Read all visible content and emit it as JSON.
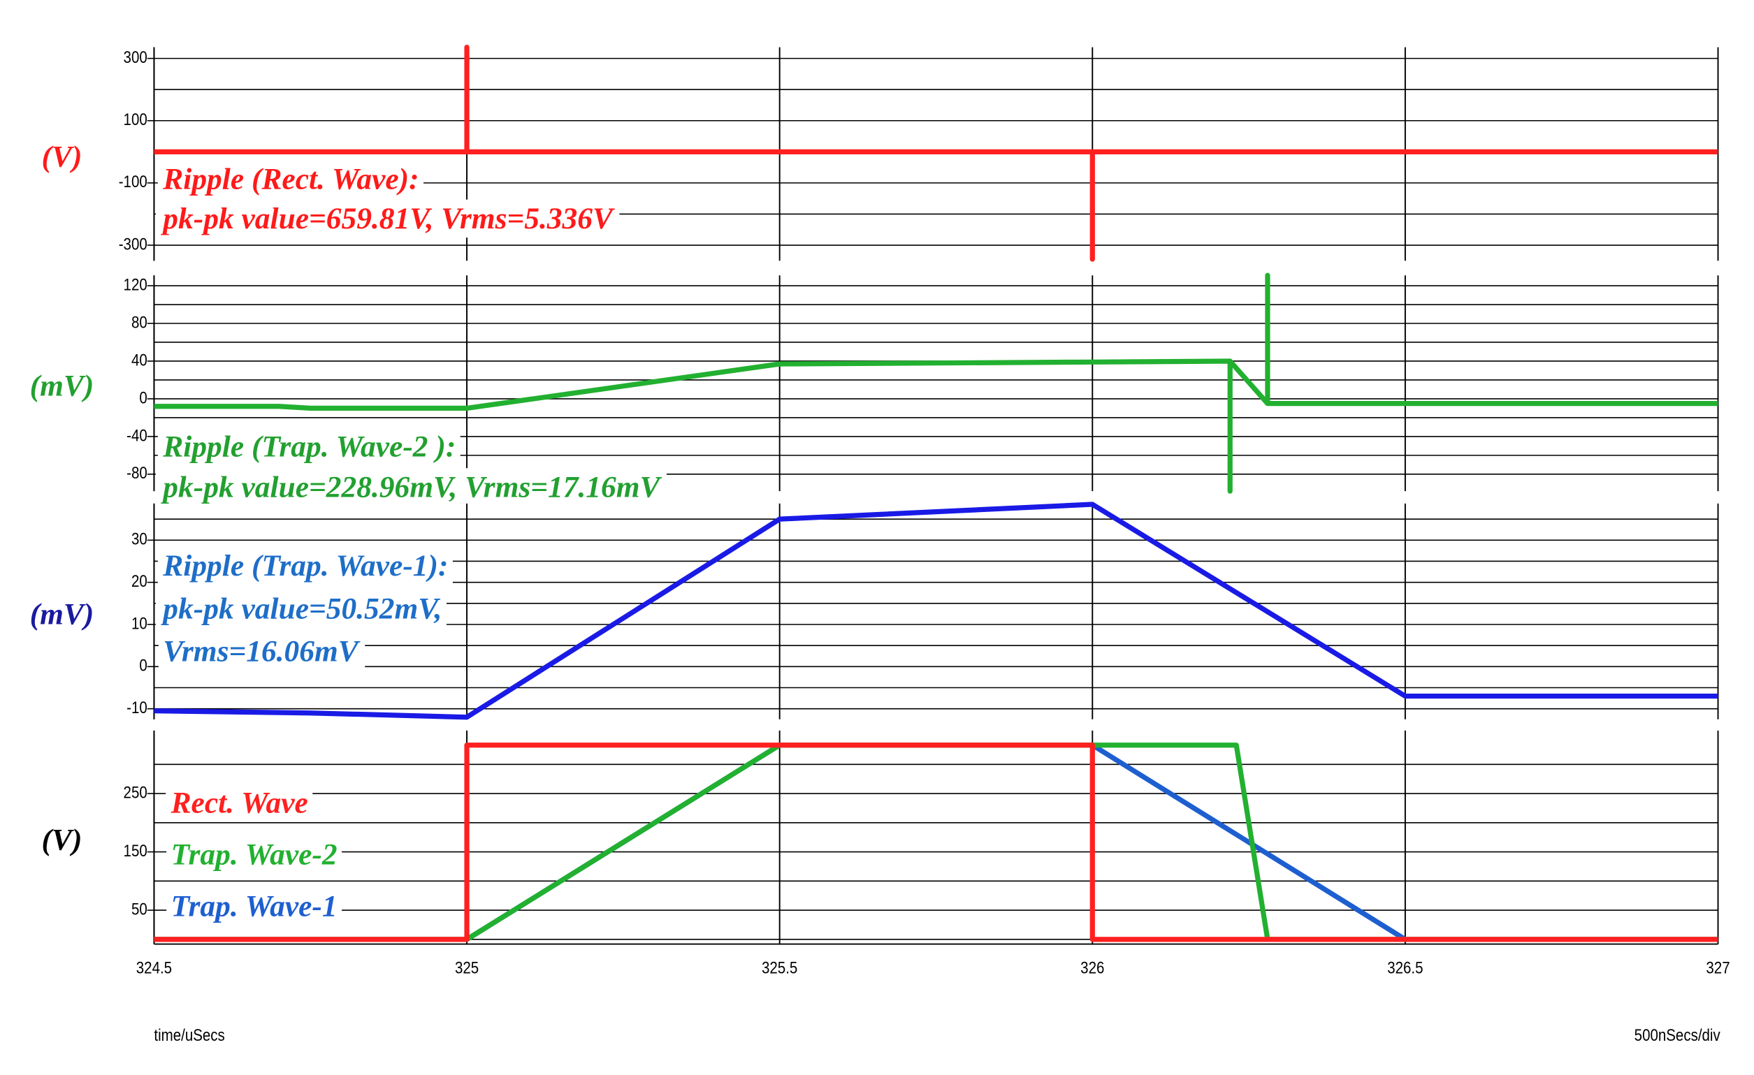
{
  "chart_data": [
    {
      "type": "line",
      "ylabel": "(V)",
      "ylabel_color": "#ff1a1a",
      "annotation": [
        "Ripple (Rect. Wave):",
        "pk-pk value=659.81V, Vrms=5.336V"
      ],
      "annotation_color": "#ff1a1a",
      "xlim": [
        324.5,
        327
      ],
      "xticks": [
        324.5,
        325,
        325.5,
        326,
        326.5,
        327
      ],
      "ylim": [
        -350,
        336
      ],
      "yticks": [
        300,
        100,
        -100,
        -300
      ],
      "yminor": [
        200,
        0,
        -200
      ],
      "grid": true,
      "series": [
        {
          "color": "#ff2020",
          "x": [
            324.5,
            325,
            325,
            325,
            326,
            326,
            326,
            327
          ],
          "values": [
            0,
            0,
            336,
            0,
            0,
            -345,
            0,
            0
          ]
        }
      ]
    },
    {
      "type": "line",
      "ylabel": "(mV)",
      "ylabel_color": "#22a030",
      "annotation": [
        "Ripple (Trap. Wave-2 ):",
        "pk-pk value=228.96mV, Vrms=17.16mV"
      ],
      "annotation_color": "#22a030",
      "xlim": [
        324.5,
        327
      ],
      "xticks": [
        324.5,
        325,
        325.5,
        326,
        326.5,
        327
      ],
      "ylim": [
        -98,
        131
      ],
      "yticks": [
        120,
        80,
        40,
        0,
        -40,
        -80
      ],
      "yminor": [
        100,
        60,
        20,
        -20,
        -60
      ],
      "grid": true,
      "series": [
        {
          "color": "#22b030",
          "x": [
            324.5,
            324.7,
            324.75,
            325,
            325.5,
            326,
            326.22,
            326.22,
            326.22,
            326.28,
            326.28,
            326.28,
            327
          ],
          "values": [
            -8,
            -8,
            -10,
            -10,
            37,
            39,
            40,
            -98,
            40,
            -5,
            131,
            -5,
            -5
          ]
        }
      ]
    },
    {
      "type": "line",
      "ylabel": "(mV)",
      "ylabel_color": "#1a1aa0",
      "annotation": [
        "Ripple (Trap. Wave-1):",
        "pk-pk value=50.52mV,",
        "Vrms=16.06mV"
      ],
      "annotation_color": "#1e6ec8",
      "xlim": [
        324.5,
        327
      ],
      "xticks": [
        324.5,
        325,
        325.5,
        326,
        326.5,
        327
      ],
      "ylim": [
        -12.5,
        38.7
      ],
      "yticks": [
        30,
        20,
        10,
        0,
        -10
      ],
      "yminor": [
        35,
        25,
        15,
        5,
        -5
      ],
      "grid": true,
      "series": [
        {
          "color": "#1a1ae6",
          "x": [
            324.5,
            324.75,
            325,
            325.5,
            326,
            326.5,
            327
          ],
          "values": [
            -10.5,
            -11,
            -12,
            35,
            38.5,
            -7,
            -7
          ]
        }
      ]
    },
    {
      "type": "line",
      "ylabel": "(V)",
      "ylabel_color": "#000000",
      "xlim": [
        324.5,
        327
      ],
      "xticks": [
        324.5,
        325,
        325.5,
        326,
        326.5,
        327
      ],
      "xlabel": "time/uSecs",
      "xscale_note": "500nSecs/div",
      "ylim": [
        -8,
        358
      ],
      "yticks": [
        250,
        150,
        50
      ],
      "yminor": [
        300,
        200,
        100,
        0
      ],
      "grid": true,
      "series": [
        {
          "name": "Rect. Wave",
          "color": "#ff2020",
          "x": [
            324.5,
            325,
            325,
            326,
            326,
            327
          ],
          "values": [
            0,
            0,
            333,
            333,
            0,
            0
          ]
        },
        {
          "name": "Trap. Wave-2",
          "color": "#22b030",
          "x": [
            324.5,
            325,
            325.5,
            326.23,
            326.28,
            327
          ],
          "values": [
            0,
            0,
            333,
            333,
            0,
            0
          ]
        },
        {
          "name": "Trap. Wave-1",
          "color": "#1e5fd0",
          "x": [
            324.5,
            325,
            325.5,
            326,
            326.5,
            327
          ],
          "values": [
            0,
            0,
            333,
            333,
            0,
            0
          ]
        }
      ]
    }
  ]
}
